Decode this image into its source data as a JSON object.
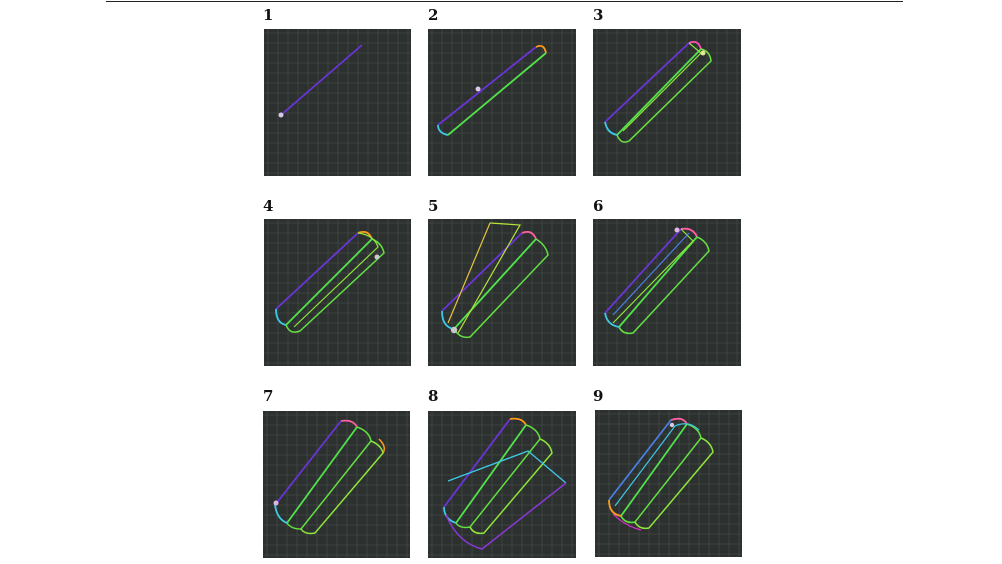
{
  "figure": {
    "panels": [
      {
        "label": "1"
      },
      {
        "label": "2"
      },
      {
        "label": "3"
      },
      {
        "label": "4"
      },
      {
        "label": "5"
      },
      {
        "label": "6"
      },
      {
        "label": "7"
      },
      {
        "label": "8"
      },
      {
        "label": "9"
      }
    ]
  },
  "colors": {
    "panel_background": "#2c302f",
    "grid": "#4a514f",
    "marker": "#d9c9e6"
  }
}
